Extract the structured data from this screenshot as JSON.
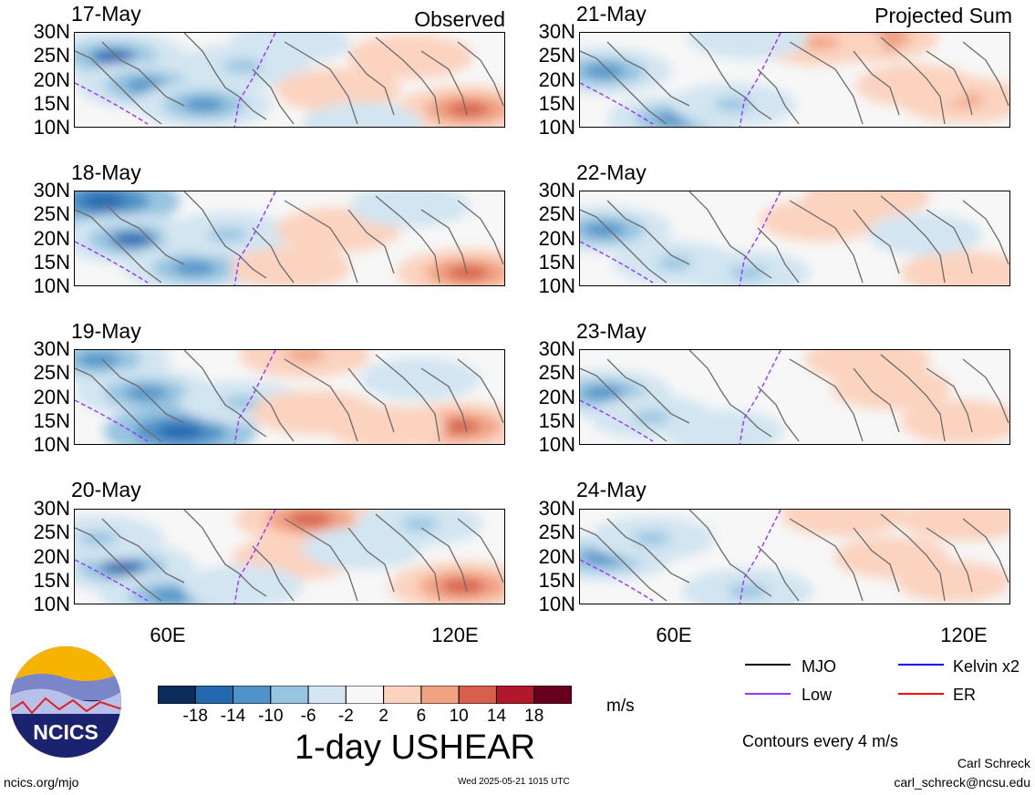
{
  "chart_data": {
    "type": "heatmap",
    "title": "1-day USHEAR",
    "units": "m/s",
    "contours_note": "Contours every 4 m/s",
    "column_labels": [
      "Observed",
      "Projected Sum"
    ],
    "yticks": [
      "30N",
      "25N",
      "20N",
      "15N",
      "10N"
    ],
    "xticks": [
      "60E",
      "120E"
    ],
    "xlim_deg": [
      40,
      130
    ],
    "ylim_deg": [
      10,
      30
    ],
    "colorbar": {
      "ticks": [
        "-18",
        "-14",
        "-10",
        "-6",
        "-2",
        "2",
        "6",
        "10",
        "14",
        "18"
      ],
      "colors": [
        "#0c2d5c",
        "#2468b0",
        "#4f93c8",
        "#97c4e0",
        "#d2e5f1",
        "#f7f7f7",
        "#fbd3bf",
        "#f1a283",
        "#d6604d",
        "#b2182b",
        "#67001f"
      ]
    },
    "panels": [
      {
        "date": "17-May",
        "column": "observed",
        "blobs": [
          {
            "lon": 48,
            "lat": 25,
            "v": -14
          },
          {
            "lon": 55,
            "lat": 19,
            "v": -12
          },
          {
            "lon": 67,
            "lat": 15,
            "v": -10
          },
          {
            "lon": 75,
            "lat": 23,
            "v": -8
          },
          {
            "lon": 95,
            "lat": 18,
            "v": 6
          },
          {
            "lon": 110,
            "lat": 25,
            "v": 6
          },
          {
            "lon": 122,
            "lat": 14,
            "v": 12
          },
          {
            "lon": 85,
            "lat": 28,
            "v": -4
          },
          {
            "lon": 100,
            "lat": 11,
            "v": -4
          }
        ]
      },
      {
        "date": "18-May",
        "column": "observed",
        "blobs": [
          {
            "lon": 46,
            "lat": 28,
            "v": -16
          },
          {
            "lon": 52,
            "lat": 20,
            "v": -14
          },
          {
            "lon": 65,
            "lat": 14,
            "v": -12
          },
          {
            "lon": 72,
            "lat": 21,
            "v": -8
          },
          {
            "lon": 95,
            "lat": 22,
            "v": 6
          },
          {
            "lon": 122,
            "lat": 13,
            "v": 12
          },
          {
            "lon": 110,
            "lat": 27,
            "v": -4
          },
          {
            "lon": 85,
            "lat": 14,
            "v": 4
          }
        ]
      },
      {
        "date": "19-May",
        "column": "observed",
        "blobs": [
          {
            "lon": 45,
            "lat": 28,
            "v": -12
          },
          {
            "lon": 55,
            "lat": 21,
            "v": -12
          },
          {
            "lon": 62,
            "lat": 13,
            "v": -16
          },
          {
            "lon": 75,
            "lat": 19,
            "v": -6
          },
          {
            "lon": 88,
            "lat": 29,
            "v": 8
          },
          {
            "lon": 90,
            "lat": 17,
            "v": 6
          },
          {
            "lon": 120,
            "lat": 14,
            "v": 12
          },
          {
            "lon": 112,
            "lat": 24,
            "v": -4
          },
          {
            "lon": 105,
            "lat": 14,
            "v": 4
          }
        ]
      },
      {
        "date": "20-May",
        "column": "observed",
        "blobs": [
          {
            "lon": 50,
            "lat": 18,
            "v": -14
          },
          {
            "lon": 60,
            "lat": 12,
            "v": -12
          },
          {
            "lon": 45,
            "lat": 24,
            "v": -8
          },
          {
            "lon": 89,
            "lat": 28,
            "v": 14
          },
          {
            "lon": 86,
            "lat": 20,
            "v": 6
          },
          {
            "lon": 121,
            "lat": 14,
            "v": 14
          },
          {
            "lon": 112,
            "lat": 27,
            "v": -6
          },
          {
            "lon": 100,
            "lat": 22,
            "v": -4
          },
          {
            "lon": 75,
            "lat": 14,
            "v": -4
          }
        ]
      },
      {
        "date": "21-May",
        "column": "projected",
        "blobs": [
          {
            "lon": 45,
            "lat": 22,
            "v": -10
          },
          {
            "lon": 60,
            "lat": 12,
            "v": -10
          },
          {
            "lon": 72,
            "lat": 15,
            "v": -6
          },
          {
            "lon": 100,
            "lat": 29,
            "v": 12
          },
          {
            "lon": 90,
            "lat": 28,
            "v": 8
          },
          {
            "lon": 120,
            "lat": 16,
            "v": 8
          },
          {
            "lon": 110,
            "lat": 19,
            "v": 4
          },
          {
            "lon": 75,
            "lat": 29,
            "v": -4
          }
        ]
      },
      {
        "date": "22-May",
        "column": "projected",
        "blobs": [
          {
            "lon": 45,
            "lat": 22,
            "v": -10
          },
          {
            "lon": 60,
            "lat": 15,
            "v": -6
          },
          {
            "lon": 75,
            "lat": 13,
            "v": -6
          },
          {
            "lon": 100,
            "lat": 29,
            "v": 6
          },
          {
            "lon": 90,
            "lat": 24,
            "v": 4
          },
          {
            "lon": 120,
            "lat": 13,
            "v": 6
          },
          {
            "lon": 112,
            "lat": 21,
            "v": -2
          }
        ]
      },
      {
        "date": "23-May",
        "column": "projected",
        "blobs": [
          {
            "lon": 45,
            "lat": 21,
            "v": -10
          },
          {
            "lon": 55,
            "lat": 16,
            "v": -6
          },
          {
            "lon": 70,
            "lat": 13,
            "v": -4
          },
          {
            "lon": 100,
            "lat": 28,
            "v": 6
          },
          {
            "lon": 120,
            "lat": 15,
            "v": 6
          },
          {
            "lon": 105,
            "lat": 22,
            "v": 4
          }
        ]
      },
      {
        "date": "24-May",
        "column": "projected",
        "blobs": [
          {
            "lon": 45,
            "lat": 20,
            "v": -10
          },
          {
            "lon": 55,
            "lat": 24,
            "v": -6
          },
          {
            "lon": 75,
            "lat": 13,
            "v": -8
          },
          {
            "lon": 95,
            "lat": 29,
            "v": 6
          },
          {
            "lon": 120,
            "lat": 28,
            "v": 6
          },
          {
            "lon": 118,
            "lat": 15,
            "v": 2
          },
          {
            "lon": 105,
            "lat": 20,
            "v": 2
          }
        ]
      }
    ]
  },
  "legend": {
    "items": [
      {
        "label": "MJO",
        "color": "#000000"
      },
      {
        "label": "Kelvin x2",
        "color": "#0000ff"
      },
      {
        "label": "Low",
        "color": "#9933ff"
      },
      {
        "label": "ER",
        "color": "#ff0000"
      }
    ]
  },
  "logo": {
    "text": "NCICS"
  },
  "footer": {
    "left": "ncics.org/mjo",
    "center": "Wed 2025-05-21 1015 UTC",
    "author": "Carl Schreck",
    "email": "carl_schreck@ncsu.edu"
  }
}
